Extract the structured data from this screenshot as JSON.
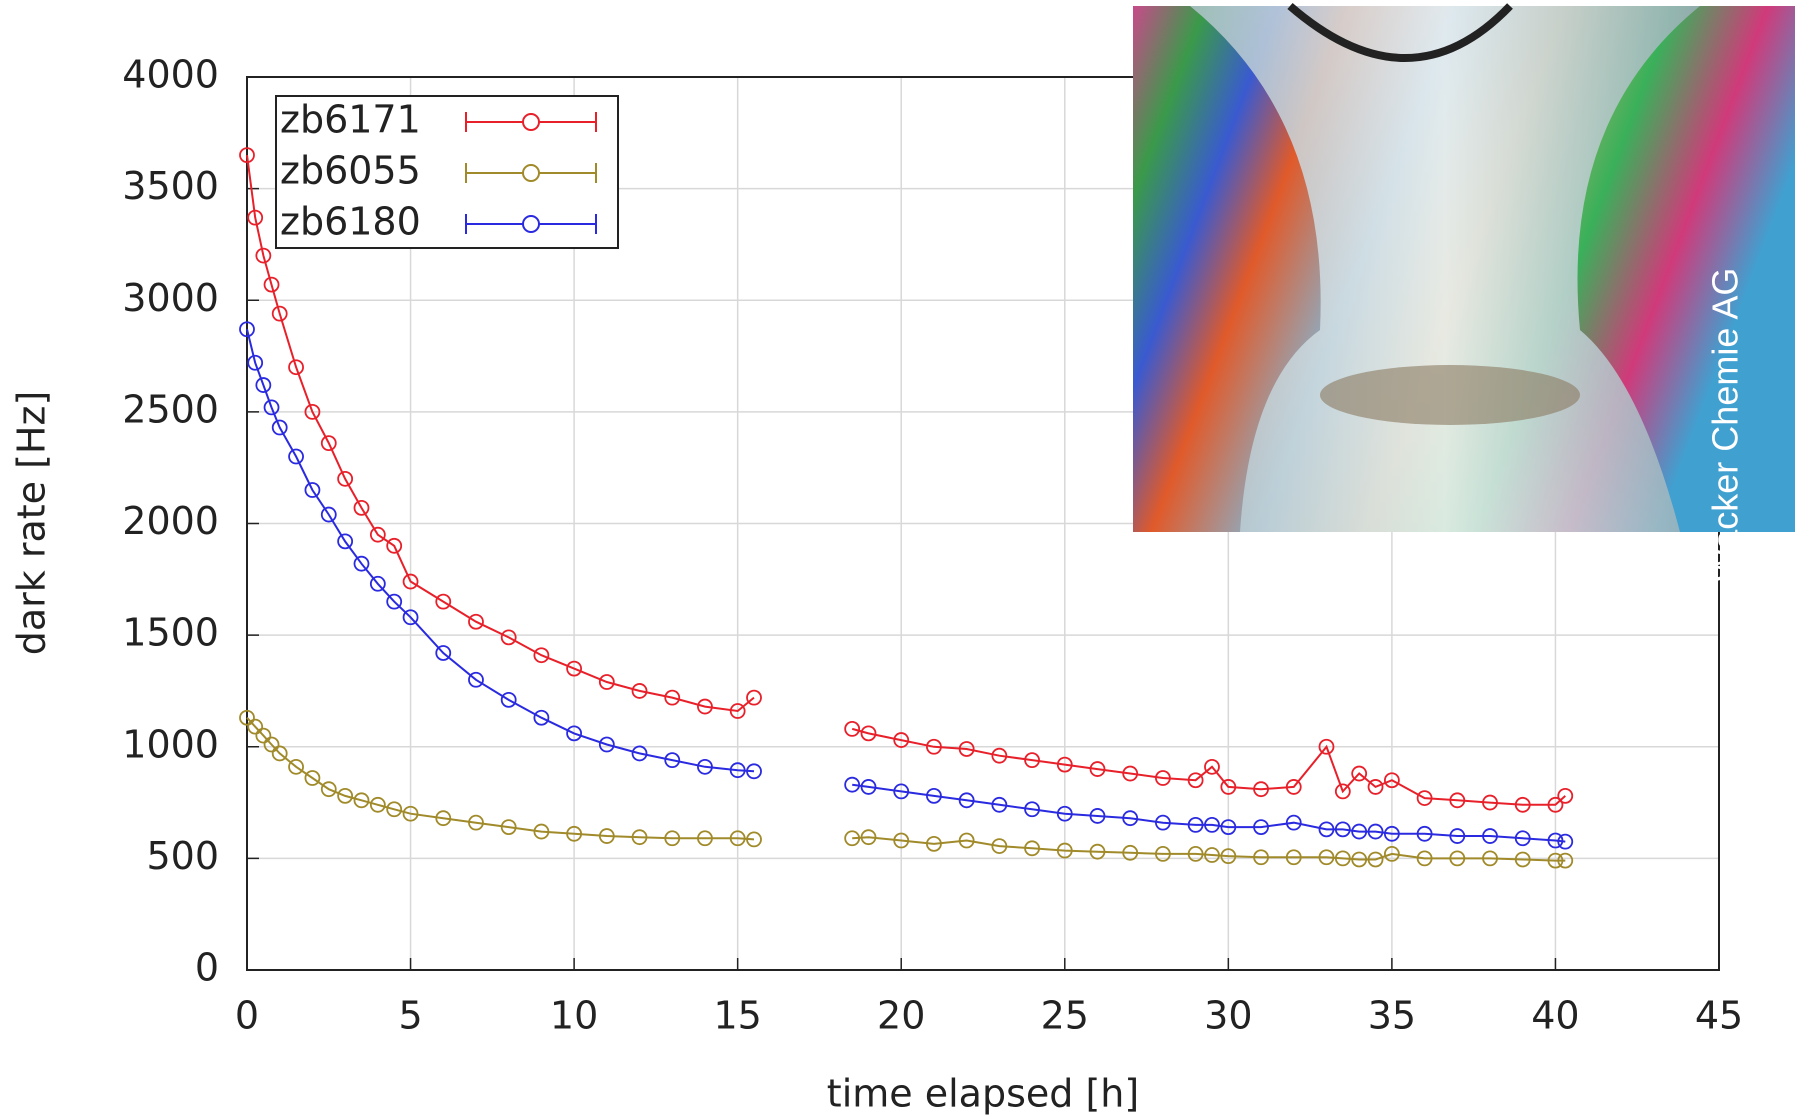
{
  "chart_data": {
    "type": "line",
    "xlabel": "time elapsed [h]",
    "ylabel": "dark rate [Hz]",
    "annotation": "Wacker Chemie AG",
    "x": [
      0,
      0.25,
      0.5,
      0.75,
      1,
      1.5,
      2,
      2.5,
      3,
      3.5,
      4,
      4.5,
      5,
      6,
      7,
      8,
      9,
      10,
      11,
      12,
      13,
      14,
      15,
      15.5,
      17,
      18.5,
      19,
      20,
      21,
      22,
      23,
      24,
      25,
      26,
      27,
      28,
      29,
      29.5,
      30,
      31,
      32,
      33,
      33.5,
      34,
      34.5,
      35,
      36,
      37,
      38,
      39,
      40,
      40.3
    ],
    "series": [
      {
        "name": "zb6171",
        "color": "#e8202a",
        "values": [
          3650,
          3370,
          3200,
          3070,
          2940,
          2700,
          2500,
          2360,
          2200,
          2070,
          1950,
          1900,
          1740,
          1650,
          1560,
          1490,
          1410,
          1350,
          1290,
          1250,
          1220,
          1180,
          1160,
          1220,
          null,
          1080,
          1060,
          1030,
          1000,
          990,
          960,
          940,
          920,
          900,
          880,
          860,
          850,
          910,
          820,
          810,
          820,
          1000,
          800,
          880,
          820,
          850,
          770,
          760,
          750,
          740,
          740,
          780
        ]
      },
      {
        "name": "zb6055",
        "color": "#a08a2a",
        "values": [
          1130,
          1090,
          1050,
          1010,
          970,
          910,
          860,
          810,
          780,
          760,
          740,
          720,
          700,
          680,
          660,
          640,
          620,
          610,
          600,
          595,
          590,
          590,
          590,
          585,
          null,
          590,
          595,
          580,
          565,
          580,
          555,
          545,
          535,
          530,
          525,
          520,
          520,
          515,
          510,
          505,
          505,
          505,
          500,
          495,
          495,
          520,
          500,
          500,
          500,
          495,
          490,
          490
        ]
      },
      {
        "name": "zb6180",
        "color": "#2a2ae0",
        "values": [
          2870,
          2720,
          2620,
          2520,
          2430,
          2300,
          2150,
          2040,
          1920,
          1820,
          1730,
          1650,
          1580,
          1420,
          1300,
          1210,
          1130,
          1060,
          1010,
          970,
          940,
          910,
          895,
          890,
          null,
          830,
          820,
          800,
          780,
          760,
          740,
          720,
          700,
          690,
          680,
          660,
          650,
          650,
          640,
          640,
          660,
          630,
          630,
          620,
          620,
          610,
          610,
          600,
          600,
          590,
          580,
          575
        ]
      }
    ],
    "xlim": [
      0,
      45
    ],
    "xticks": [
      0,
      5,
      10,
      15,
      20,
      25,
      30,
      35,
      40,
      45
    ],
    "ylim": [
      0,
      4000
    ],
    "yticks": [
      0,
      500,
      1000,
      1500,
      2000,
      2500,
      3000,
      3500,
      4000
    ],
    "grid": true,
    "legend": "upper left"
  }
}
